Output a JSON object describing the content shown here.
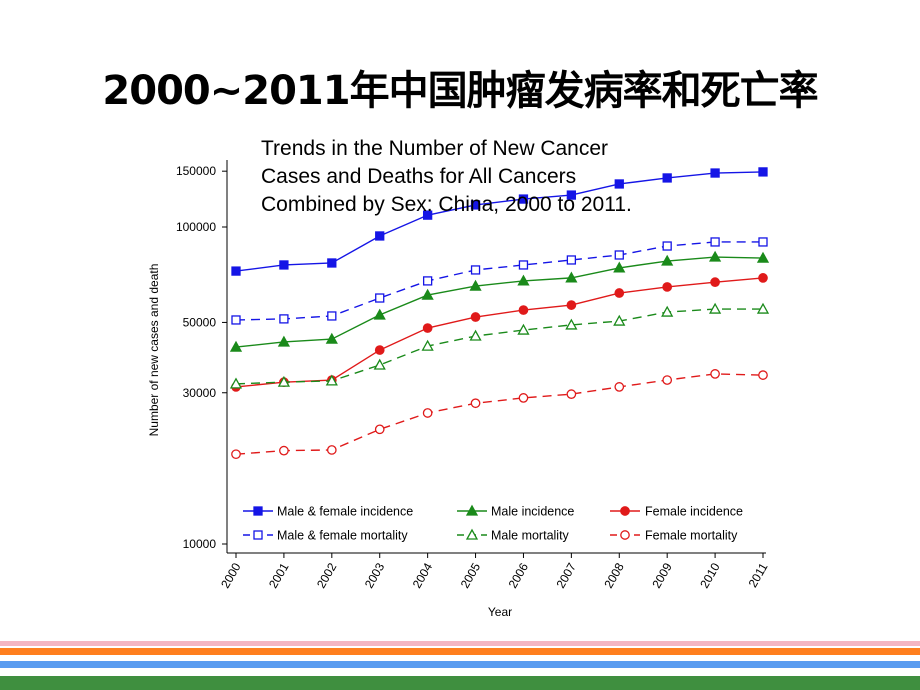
{
  "slide_title": "2000~2011年中国肿瘤发病率和死亡率",
  "colors": {
    "blue": "#1515e6",
    "green": "#1a8a1a",
    "red": "#e01a1a",
    "stripes": [
      "#f4b6c2",
      "#ff7f1e",
      "#5a9cf0",
      "#3f8f3f"
    ]
  },
  "chart_data": {
    "type": "line",
    "title": "Trends in the Number of New Cancer\nCases and Deaths for All Cancers\nCombined by Sex: China, 2000 to 2011.",
    "xlabel": "Year",
    "ylabel": "Number of new cases and death",
    "y_scale": "log",
    "ylim": [
      10000,
      160000
    ],
    "yticks": [
      10000,
      30000,
      50000,
      100000,
      150000
    ],
    "ytick_labels": [
      "10000",
      "30000",
      "50000",
      "100000",
      "150000"
    ],
    "x": [
      "2000",
      "2001",
      "2002",
      "2003",
      "2004",
      "2005",
      "2006",
      "2007",
      "2008",
      "2009",
      "2010",
      "2011"
    ],
    "legend_position": "bottom-inside",
    "grid": false,
    "series": [
      {
        "name": "Male & female incidence",
        "color": "#1515e6",
        "marker": "square-filled",
        "dash": false,
        "values": [
          72600,
          75900,
          77000,
          93700,
          109000,
          117400,
          122500,
          126100,
          136700,
          142800,
          148000,
          149200
        ]
      },
      {
        "name": "Male incidence",
        "color": "#1a8a1a",
        "marker": "triangle-filled",
        "dash": false,
        "values": [
          41800,
          43400,
          44300,
          52800,
          61000,
          65100,
          67600,
          69100,
          74300,
          78100,
          80400,
          79800
        ]
      },
      {
        "name": "Female incidence",
        "color": "#e01a1a",
        "marker": "circle-filled",
        "dash": false,
        "values": [
          31300,
          32400,
          32900,
          40900,
          48000,
          52000,
          54700,
          56700,
          61900,
          64700,
          67000,
          69100
        ]
      },
      {
        "name": "Male & female mortality",
        "color": "#1515e6",
        "marker": "square-open",
        "dash": true,
        "values": [
          50900,
          51300,
          52400,
          59700,
          67600,
          73200,
          75900,
          78700,
          81600,
          87100,
          89700,
          89700
        ]
      },
      {
        "name": "Male mortality",
        "color": "#1a8a1a",
        "marker": "triangle-open",
        "dash": true,
        "values": [
          32000,
          32400,
          32700,
          36700,
          42100,
          45300,
          47300,
          49100,
          50500,
          53900,
          55100,
          55100
        ]
      },
      {
        "name": "Female mortality",
        "color": "#e01a1a",
        "marker": "circle-open",
        "dash": true,
        "values": [
          19200,
          19700,
          19800,
          23000,
          25900,
          27800,
          28900,
          29700,
          31300,
          32900,
          34400,
          34100
        ]
      }
    ]
  }
}
